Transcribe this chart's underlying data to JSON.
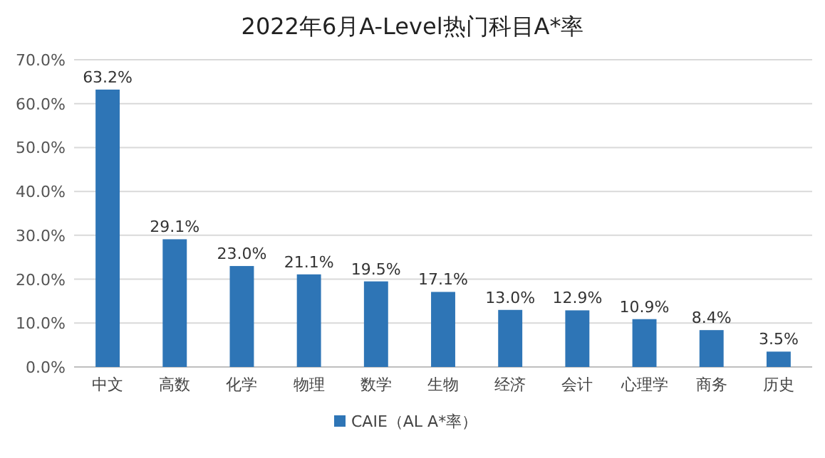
{
  "chart_data": {
    "type": "bar",
    "title": "2022年6月A-Level热门科目A*率",
    "categories": [
      "中文",
      "高数",
      "化学",
      "物理",
      "数学",
      "生物",
      "经济",
      "会计",
      "心理学",
      "商务",
      "历史"
    ],
    "series": [
      {
        "name": "CAIE（AL A*率）",
        "color": "#2e75b6",
        "values": [
          63.2,
          29.1,
          23.0,
          21.1,
          19.5,
          17.1,
          13.0,
          12.9,
          10.9,
          8.4,
          3.5
        ],
        "value_labels": [
          "63.2%",
          "29.1%",
          "23.0%",
          "21.1%",
          "19.5%",
          "17.1%",
          "13.0%",
          "12.9%",
          "10.9%",
          "8.4%",
          "3.5%"
        ]
      }
    ],
    "ylim": [
      0,
      70
    ],
    "yticks": [
      {
        "value": 0,
        "label": "0.0%"
      },
      {
        "value": 10,
        "label": "10.0%"
      },
      {
        "value": 20,
        "label": "20.0%"
      },
      {
        "value": 30,
        "label": "30.0%"
      },
      {
        "value": 40,
        "label": "40.0%"
      },
      {
        "value": 50,
        "label": "50.0%"
      },
      {
        "value": 60,
        "label": "60.0%"
      },
      {
        "value": 70,
        "label": "70.0%"
      }
    ],
    "grid": "y",
    "legend": "bottom"
  }
}
